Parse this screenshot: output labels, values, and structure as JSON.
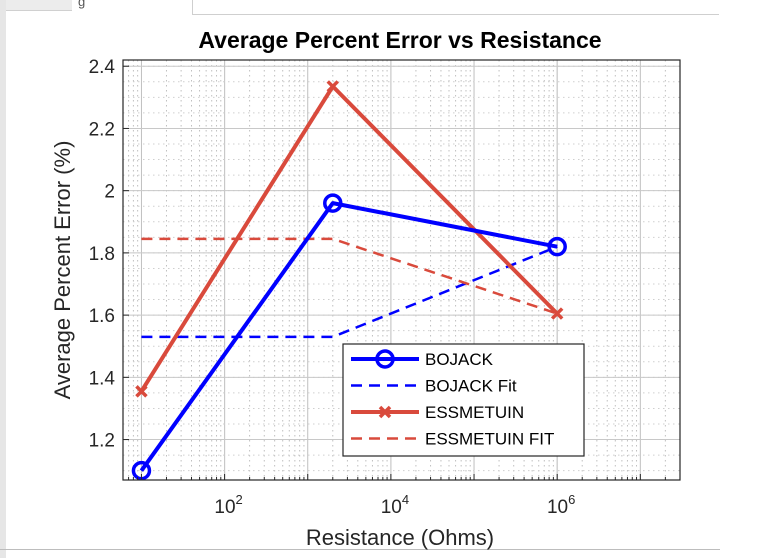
{
  "window": {
    "tab_text": "g",
    "field_value": ""
  },
  "chart_data": {
    "type": "line",
    "title": "Average Percent Error vs Resistance",
    "xlabel": "Resistance (Ohms)",
    "ylabel": "Average Percent Error (%)",
    "xscale": "log",
    "xlim": [
      6,
      30000000
    ],
    "ylim": [
      1.07,
      2.42
    ],
    "grid": true,
    "minor_grid": true,
    "legend_position": "lower-right",
    "x_ticks": [
      {
        "value": 100,
        "base": "10",
        "exp": "2"
      },
      {
        "value": 10000,
        "base": "10",
        "exp": "4"
      },
      {
        "value": 1000000,
        "base": "10",
        "exp": "6"
      }
    ],
    "y_ticks": [
      {
        "value": 1.2,
        "label": "1.2"
      },
      {
        "value": 1.4,
        "label": "1.4"
      },
      {
        "value": 1.6,
        "label": "1.6"
      },
      {
        "value": 1.8,
        "label": "1.8"
      },
      {
        "value": 2.0,
        "label": "2"
      },
      {
        "value": 2.2,
        "label": "2.2"
      },
      {
        "value": 2.4,
        "label": "2.4"
      }
    ],
    "series": [
      {
        "name": "BOJACK",
        "color": "#0000ff",
        "style": "solid",
        "marker": "circle",
        "x": [
          10,
          2000,
          1000000
        ],
        "y": [
          1.1,
          1.96,
          1.82
        ]
      },
      {
        "name": "BOJACK Fit",
        "color": "#0000ff",
        "style": "dashed",
        "marker": "none",
        "x": [
          10,
          2000,
          1000000
        ],
        "y": [
          1.53,
          1.53,
          1.82
        ]
      },
      {
        "name": "ESSMETUIN",
        "color": "#d94a3c",
        "style": "solid",
        "marker": "x",
        "x": [
          10,
          2000,
          1000000
        ],
        "y": [
          1.355,
          2.335,
          1.605
        ]
      },
      {
        "name": "ESSMETUIN FIT",
        "color": "#d94a3c",
        "style": "dashed",
        "marker": "none",
        "x": [
          10,
          2000,
          1000000
        ],
        "y": [
          1.845,
          1.845,
          1.605
        ]
      }
    ]
  }
}
